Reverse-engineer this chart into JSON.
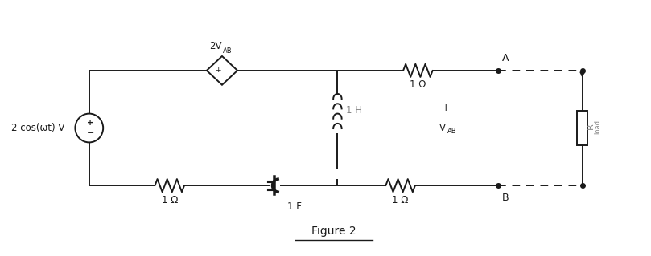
{
  "bg_color": "#ffffff",
  "line_color": "#1a1a1a",
  "fig_width": 8.09,
  "fig_height": 3.19,
  "title": "Figure 2",
  "xlim": [
    0,
    9
  ],
  "ylim": [
    0,
    3.5
  ],
  "vs_label": "2 cos(ωt) V",
  "diamond_label_main": "2V",
  "diamond_label_sub": "AB",
  "inductor_label": "1 H",
  "cap_label": "1 F",
  "res_top_label": "1 Ω",
  "res_bot_left_label": "1 Ω",
  "res_bot_right_label": "1 Ω",
  "node_a": "A",
  "node_b": "B",
  "vab_plus": "+",
  "vab_label_main": "V",
  "vab_label_sub": "AB",
  "vab_minus": "-",
  "rload_label": "R",
  "rload_sub": "load",
  "layout": {
    "top_y": 2.55,
    "bot_y": 0.95,
    "vs_x": 1.0,
    "vs_y": 1.75,
    "diam_x": 2.9,
    "vert_x": 4.55,
    "top_res_x": 5.7,
    "node_a_x": 6.85,
    "bot_res_left_x": 2.15,
    "cap_x": 3.65,
    "bot_res_right_x": 5.45,
    "node_b_x": 6.85,
    "rload_x": 8.05,
    "rload_y": 1.75,
    "ind_y": 1.95,
    "cap_comp_y": 1.15
  }
}
